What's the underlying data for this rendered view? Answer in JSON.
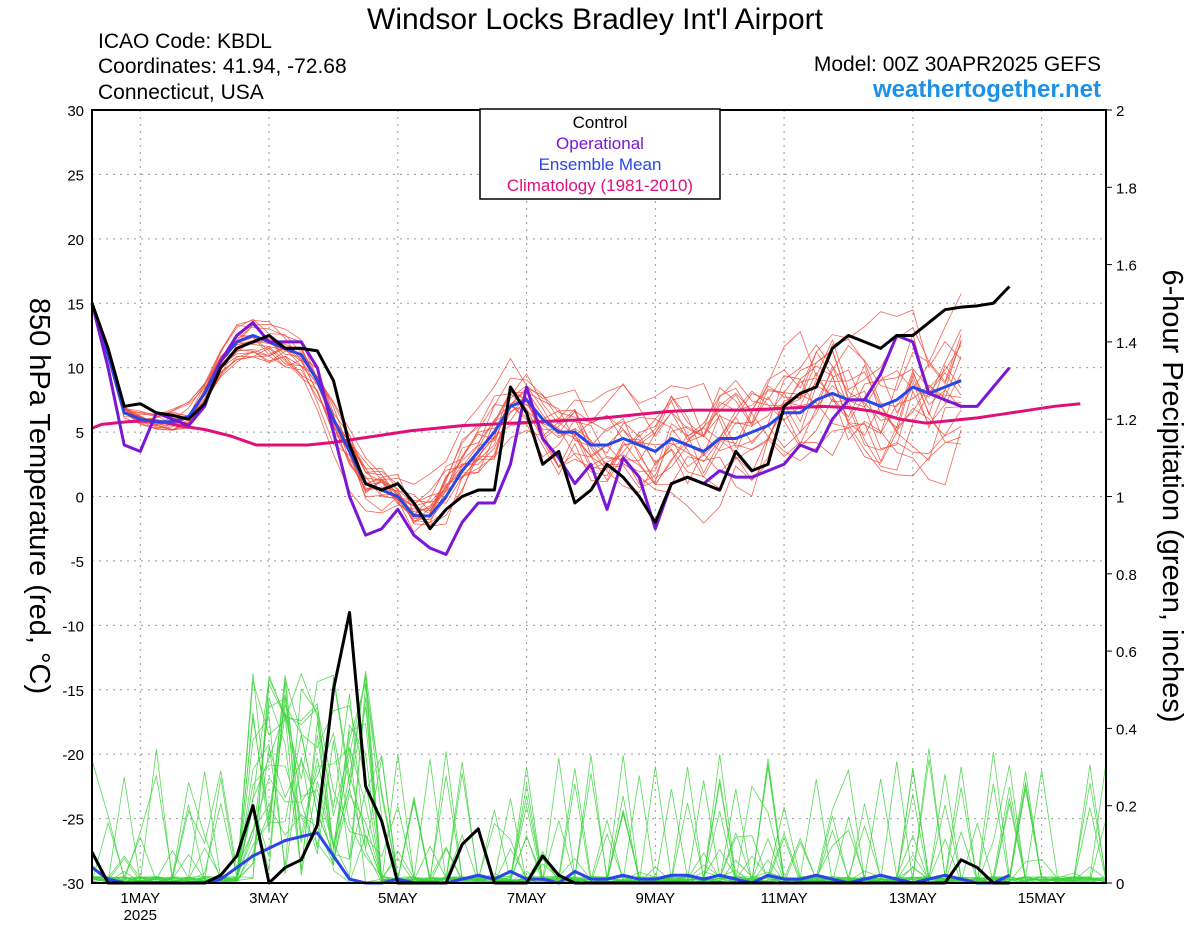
{
  "header": {
    "title": "Windsor Locks Bradley Int'l Airport",
    "icao": "ICAO Code: KBDL",
    "coords": "Coordinates: 41.94, -72.68",
    "region": "Connecticut, USA",
    "model": "Model: 00Z 30APR2025 GEFS",
    "site": "weathertogether.net"
  },
  "colors": {
    "control": "#000000",
    "operational": "#7a16d6",
    "mean": "#2a46e6",
    "climatology": "#e0107a",
    "member_temp": "#f04a3a",
    "member_precip": "#3cd43c",
    "site": "#1e90e8",
    "grid": "#9a9a9a"
  },
  "chart_data": {
    "type": "line",
    "ylabel_left": "850 hPa Temperature (red, °C)",
    "ylabel_right": "6-hour Precipitation (green, inches)",
    "y_left_lim": [
      -30,
      30
    ],
    "y_right_lim": [
      0,
      2
    ],
    "y_left_ticks": [
      "30",
      "25",
      "20",
      "15",
      "10",
      "5",
      "0",
      "-5",
      "-10",
      "-15",
      "-20",
      "-25",
      "-30"
    ],
    "y_right_ticks": [
      "2",
      "1.8",
      "1.6",
      "1.4",
      "1.2",
      "1",
      "0.8",
      "0.6",
      "0.4",
      "0.2",
      "0"
    ],
    "x_ticks": [
      {
        "day": 1,
        "label": "1MAY",
        "sub": "2025"
      },
      {
        "day": 3,
        "label": "3MAY",
        "sub": ""
      },
      {
        "day": 5,
        "label": "5MAY",
        "sub": ""
      },
      {
        "day": 7,
        "label": "7MAY",
        "sub": ""
      },
      {
        "day": 9,
        "label": "9MAY",
        "sub": ""
      },
      {
        "day": 11,
        "label": "11MAY",
        "sub": ""
      },
      {
        "day": 13,
        "label": "13MAY",
        "sub": ""
      },
      {
        "day": 15,
        "label": "15MAY",
        "sub": ""
      }
    ],
    "grid": true,
    "legend_position": "top-center",
    "legend": [
      {
        "label": "Control",
        "color": "#000000"
      },
      {
        "label": "Operational",
        "color": "#7a16d6"
      },
      {
        "label": "Ensemble Mean",
        "color": "#2a46e6"
      },
      {
        "label": "Climatology (1981-2010)",
        "color": "#e0107a"
      }
    ],
    "x_days": [
      0.25,
      0.5,
      0.75,
      1,
      1.25,
      1.5,
      1.75,
      2,
      2.25,
      2.5,
      2.75,
      3,
      3.25,
      3.5,
      3.75,
      4,
      4.25,
      4.5,
      4.75,
      5,
      5.25,
      5.5,
      5.75,
      6,
      6.25,
      6.5,
      6.75,
      7,
      7.25,
      7.5,
      7.75,
      8,
      8.25,
      8.5,
      8.75,
      9,
      9.25,
      9.5,
      9.75,
      10,
      10.25,
      10.5,
      10.75,
      11,
      11.25,
      11.5,
      11.75,
      12,
      12.25,
      12.5,
      12.75,
      13,
      13.25,
      13.5,
      13.75,
      14,
      14.25,
      14.5,
      14.75,
      15,
      15.25,
      15.5,
      15.75,
      16
    ],
    "series_temp": {
      "control": [
        15.0,
        11.5,
        7.0,
        7.2,
        6.5,
        6.3,
        6.0,
        7.2,
        10.0,
        11.5,
        12.0,
        12.5,
        11.5,
        11.5,
        11.3,
        9.0,
        4.0,
        1.0,
        0.5,
        1.0,
        -0.5,
        -2.5,
        -1.0,
        0.0,
        0.5,
        0.5,
        8.5,
        6.5,
        2.5,
        3.5,
        -0.5,
        0.5,
        2.5,
        1.5,
        0.0,
        -2.0,
        1.0,
        1.5,
        1.0,
        0.5,
        3.5,
        2.0,
        2.5,
        7.0,
        8.0,
        8.5,
        11.5,
        12.5,
        12.0,
        11.5,
        12.5,
        12.5,
        13.5,
        14.5,
        14.7,
        14.8,
        15.0,
        16.3
      ],
      "operational": [
        15.0,
        10.0,
        4.0,
        3.5,
        6.5,
        6.0,
        5.5,
        7.0,
        10.5,
        12.5,
        13.5,
        12.0,
        12.0,
        12.0,
        10.0,
        5.0,
        0.0,
        -3.0,
        -2.5,
        -1.0,
        -3.0,
        -4.0,
        -4.5,
        -2.0,
        -0.5,
        -0.5,
        2.5,
        8.5,
        4.5,
        3.0,
        1.0,
        2.5,
        -1.0,
        3.0,
        1.5,
        -2.5,
        1.0,
        1.5,
        1.0,
        2.0,
        1.5,
        1.5,
        2.0,
        2.5,
        4.0,
        3.5,
        6.0,
        7.5,
        7.5,
        9.5,
        12.5,
        12.0,
        8.0,
        7.5,
        7.0,
        7.0,
        8.5,
        10.0
      ],
      "mean": [
        15.0,
        11.0,
        6.5,
        6.0,
        5.8,
        5.8,
        6.2,
        8.0,
        10.5,
        12.0,
        12.5,
        12.0,
        11.5,
        11.0,
        9.0,
        6.0,
        3.5,
        1.0,
        0.5,
        0.0,
        -1.5,
        -1.5,
        0.0,
        2.0,
        3.5,
        5.0,
        7.0,
        7.5,
        6.0,
        5.0,
        5.0,
        4.0,
        4.0,
        4.5,
        4.0,
        3.5,
        4.5,
        4.0,
        3.5,
        4.5,
        4.5,
        5.0,
        5.5,
        6.5,
        6.5,
        7.5,
        8.0,
        7.5,
        7.5,
        7.0,
        7.5,
        8.5,
        8.0,
        8.5,
        9.0
      ],
      "climatology": [
        5.3,
        5.6,
        5.8,
        5.9,
        5.5,
        5.2,
        4.7,
        4.0,
        4.0,
        4.0,
        4.2,
        4.5,
        4.8,
        5.1,
        5.3,
        5.5,
        5.6,
        5.7,
        5.8,
        5.9,
        6.0,
        6.2,
        6.4,
        6.6,
        6.7,
        6.7,
        6.7,
        6.8,
        6.9,
        7.0,
        6.9,
        6.6,
        6.0,
        5.7,
        5.9,
        6.1,
        6.4,
        6.7,
        7.0,
        7.2
      ]
    },
    "climatology_days": [
      0,
      0.4,
      0.8,
      1.2,
      1.6,
      2.0,
      2.4,
      2.8,
      3.2,
      3.6,
      4.0,
      4.4,
      4.8,
      5.2,
      5.6,
      6.0,
      6.4,
      6.8,
      7.2,
      7.6,
      8.0,
      8.4,
      8.8,
      9.2,
      9.6,
      10.0,
      10.4,
      10.8,
      11.2,
      11.6,
      12.0,
      12.4,
      12.8,
      13.2,
      13.6,
      14.0,
      14.4,
      14.8,
      15.2,
      15.6
    ],
    "series_precip": {
      "control": [
        0.08,
        0.0,
        0.0,
        0.0,
        0.0,
        0.0,
        0.0,
        0.0,
        0.02,
        0.07,
        0.2,
        0.0,
        0.04,
        0.06,
        0.15,
        0.5,
        0.7,
        0.25,
        0.16,
        0.0,
        0.0,
        0.0,
        0.0,
        0.1,
        0.14,
        0.0,
        0.0,
        0.0,
        0.07,
        0.02,
        0.0,
        0.0,
        0.0,
        0.0,
        0.0,
        0.0,
        0.0,
        0.0,
        0.0,
        0.0,
        0.0,
        0.0,
        0.0,
        0.0,
        0.0,
        0.0,
        0.0,
        0.0,
        0.0,
        0.0,
        0.0,
        0.0,
        0.0,
        0.0,
        0.06,
        0.04,
        0.0,
        0.0
      ],
      "mean": [
        0.04,
        0.01,
        0.0,
        0.0,
        0.0,
        0.0,
        0.0,
        0.0,
        0.01,
        0.04,
        0.07,
        0.09,
        0.11,
        0.12,
        0.13,
        0.07,
        0.01,
        0.0,
        0.0,
        0.01,
        0.0,
        0.0,
        0.0,
        0.01,
        0.02,
        0.01,
        0.03,
        0.01,
        0.01,
        0.0,
        0.03,
        0.01,
        0.01,
        0.02,
        0.01,
        0.01,
        0.02,
        0.02,
        0.01,
        0.02,
        0.01,
        0.0,
        0.02,
        0.01,
        0.01,
        0.02,
        0.01,
        0.0,
        0.01,
        0.02,
        0.01,
        0.0,
        0.01,
        0.02,
        0.01,
        0.0,
        0.0,
        0.02
      ]
    }
  }
}
